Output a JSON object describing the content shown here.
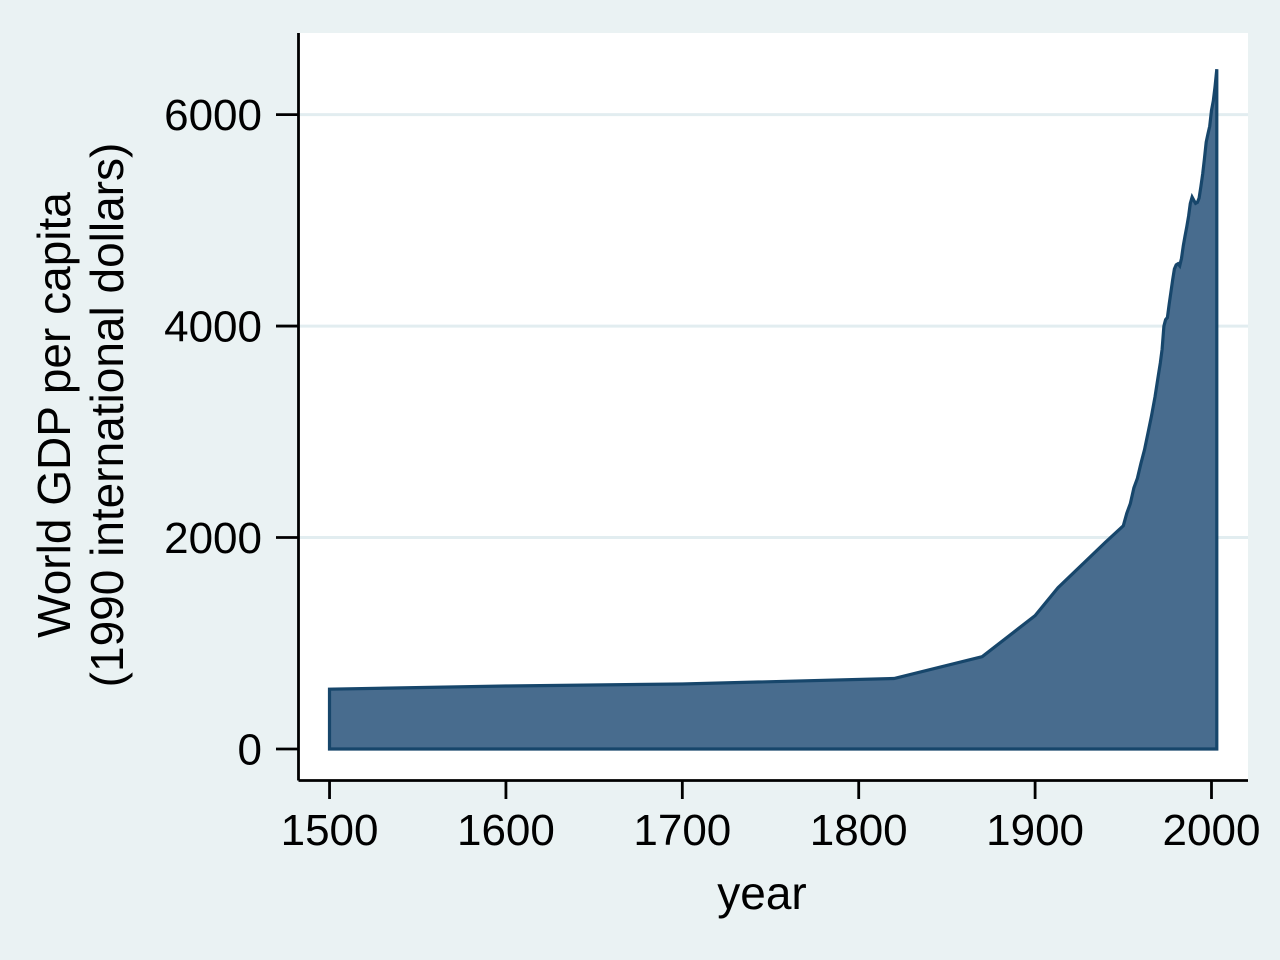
{
  "chart_data": {
    "type": "area",
    "title": "",
    "xlabel": "year",
    "ylabel_lines": [
      "World GDP per capita",
      "(1990 international dollars)"
    ],
    "x_ticks": [
      1500,
      1600,
      1700,
      1800,
      1900,
      2000
    ],
    "y_ticks": [
      0,
      2000,
      4000,
      6000
    ],
    "grid_values": [
      2000,
      4000,
      6000
    ],
    "xlim": [
      1482.4,
      2020.7
    ],
    "ylim": [
      -298,
      6772
    ],
    "grid": true,
    "legend": "none",
    "series": [
      {
        "name": "World GDP per capita (1990 international dollars)",
        "x": [
          1500,
          1600,
          1700,
          1820,
          1870,
          1900,
          1913,
          1940,
          1950,
          1952,
          1954,
          1956,
          1958,
          1960,
          1962,
          1964,
          1966,
          1968,
          1970,
          1971,
          1972,
          1973,
          1974,
          1975,
          1976,
          1977,
          1978,
          1979,
          1980,
          1981,
          1982,
          1983,
          1984,
          1985,
          1986,
          1987,
          1988,
          1989,
          1990,
          1991,
          1992,
          1993,
          1994,
          1995,
          1996,
          1997,
          1998,
          1999,
          2000,
          2001,
          2002,
          2003
        ],
        "y": [
          566,
          596,
          615,
          667,
          873,
          1262,
          1526,
          1958,
          2111,
          2230,
          2320,
          2470,
          2560,
          2700,
          2830,
          2990,
          3150,
          3330,
          3550,
          3650,
          3780,
          4000,
          4060,
          4080,
          4210,
          4320,
          4440,
          4540,
          4580,
          4590,
          4570,
          4640,
          4760,
          4850,
          4940,
          5040,
          5160,
          5220,
          5190,
          5160,
          5170,
          5210,
          5320,
          5440,
          5580,
          5740,
          5820,
          5890,
          6040,
          6130,
          6260,
          6430
        ]
      }
    ],
    "baseline_value": 0,
    "colors": {
      "background": "#EAF2F3",
      "plot_bg": "#FFFFFF",
      "grid": "#E2EDF0",
      "area_fill": "#486C8E",
      "area_line": "#17466B",
      "axis": "#000000",
      "text": "#000000"
    }
  }
}
